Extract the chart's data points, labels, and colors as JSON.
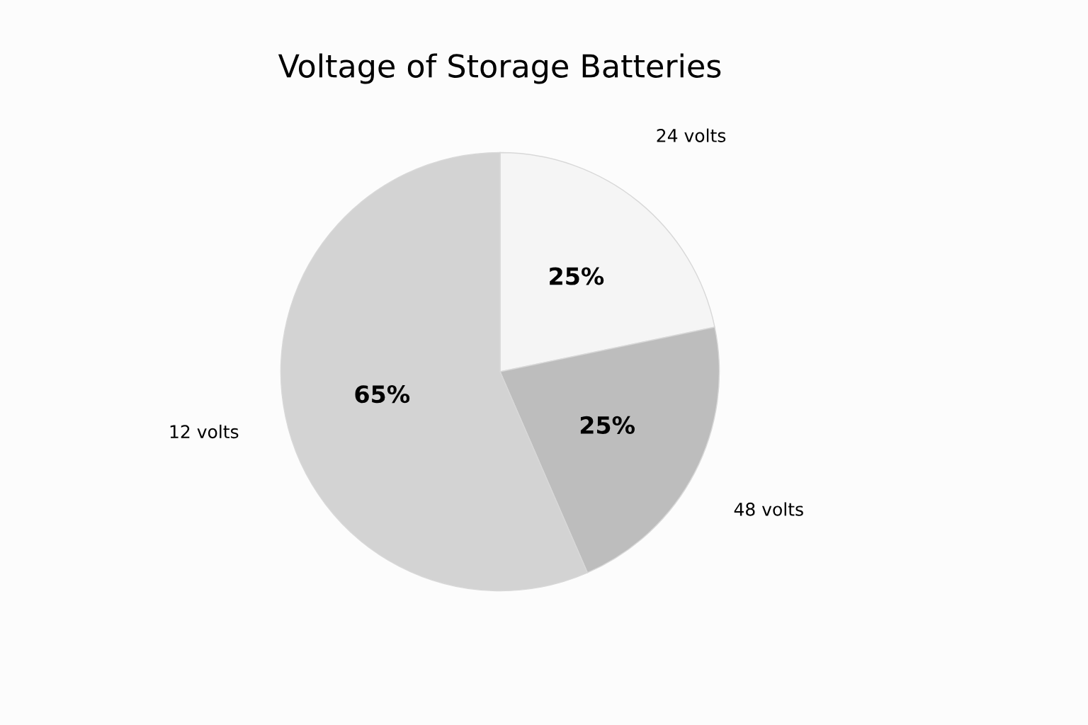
{
  "chart_data": {
    "type": "pie",
    "title": "Voltage of Storage Batteries",
    "categories": [
      "24 volts",
      "48 volts",
      "12 volts"
    ],
    "values": [
      25,
      25,
      65
    ],
    "value_labels": [
      "25%",
      "25%",
      "65%"
    ],
    "colors": [
      "#f5f5f5",
      "#bdbdbd",
      "#d3d3d3"
    ]
  }
}
